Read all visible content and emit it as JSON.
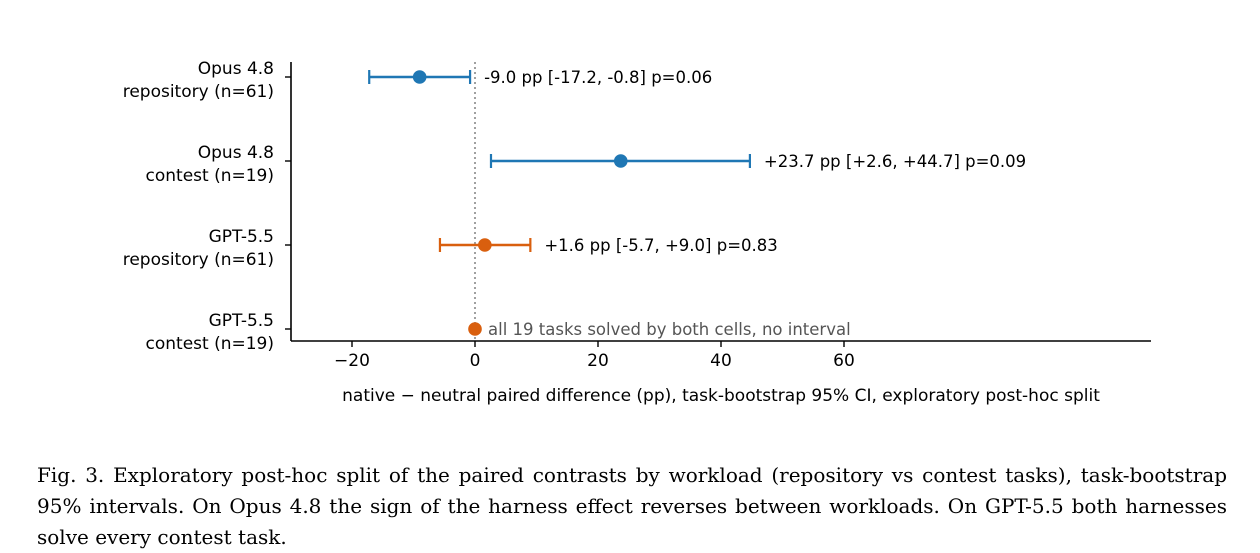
{
  "chart_data": {
    "type": "forest",
    "title": "",
    "xlabel": "native − neutral paired difference (pp), task-bootstrap 95% CI, exploratory post-hoc split",
    "ylabel": "",
    "xlim": [
      -30,
      110
    ],
    "xticks": [
      -20,
      0,
      20,
      40,
      60
    ],
    "xtick_labels": [
      "−20",
      "0",
      "20",
      "40",
      "60"
    ],
    "reference_line_x": 0,
    "grid": false,
    "colors": {
      "opus": "#1f77b4",
      "gpt": "#d95f0e",
      "reference": "#888888",
      "muted_text": "#555555"
    },
    "rows": [
      {
        "label_line1": "Opus 4.8",
        "label_line2": "repository (n=61)",
        "model": "opus",
        "estimate": -9.0,
        "ci_low": -17.2,
        "ci_high": -0.8,
        "annotation": "-9.0 pp  [-17.2, -0.8]  p=0.06",
        "has_interval": true
      },
      {
        "label_line1": "Opus 4.8",
        "label_line2": "contest (n=19)",
        "model": "opus",
        "estimate": 23.7,
        "ci_low": 2.6,
        "ci_high": 44.7,
        "annotation": "+23.7 pp  [+2.6, +44.7]  p=0.09",
        "has_interval": true
      },
      {
        "label_line1": "GPT-5.5",
        "label_line2": "repository (n=61)",
        "model": "gpt",
        "estimate": 1.6,
        "ci_low": -5.7,
        "ci_high": 9.0,
        "annotation": "+1.6 pp  [-5.7, +9.0]  p=0.83",
        "has_interval": true
      },
      {
        "label_line1": "GPT-5.5",
        "label_line2": "contest (n=19)",
        "model": "gpt",
        "estimate": 0.0,
        "ci_low": null,
        "ci_high": null,
        "annotation": "all 19 tasks solved by both cells, no interval",
        "has_interval": false
      }
    ]
  },
  "caption": {
    "text": "Fig. 3.  Exploratory post-hoc split of the paired contrasts by workload (repository vs contest tasks), task-bootstrap 95% intervals. On Opus 4.8 the sign of the harness effect reverses between workloads. On GPT-5.5 both harnesses solve every contest task."
  }
}
